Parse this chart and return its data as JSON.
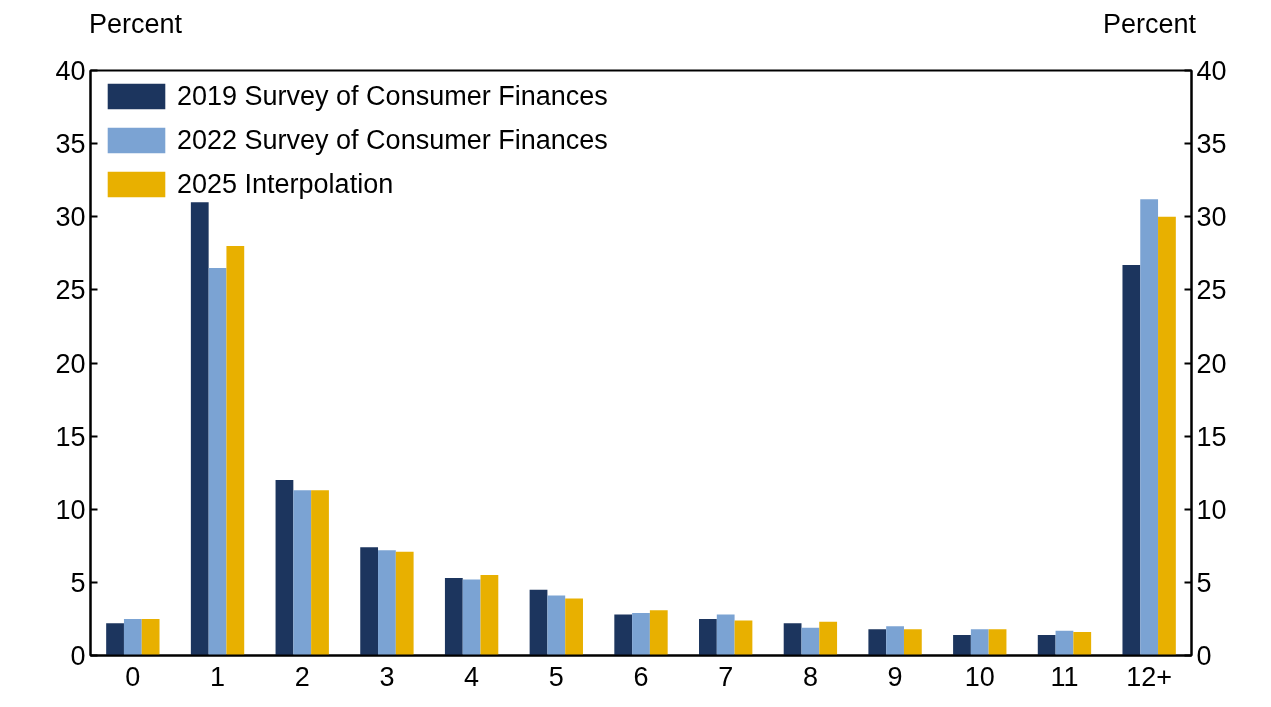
{
  "chart_data": {
    "type": "bar",
    "ylabel": "Percent",
    "y2label": "Percent",
    "categories": [
      "0",
      "1",
      "2",
      "3",
      "4",
      "5",
      "6",
      "7",
      "8",
      "9",
      "10",
      "11",
      "12+"
    ],
    "series": [
      {
        "name": "2019 Survey of Consumer Finances",
        "color": "#1c355e",
        "values": [
          2.2,
          31.0,
          12.0,
          7.4,
          5.3,
          4.5,
          2.8,
          2.5,
          2.2,
          1.8,
          1.4,
          1.4,
          26.7
        ]
      },
      {
        "name": "2022 Survey of Consumer Finances",
        "color": "#7ba3d3",
        "values": [
          2.5,
          26.5,
          11.3,
          7.2,
          5.2,
          4.1,
          2.9,
          2.8,
          1.9,
          2.0,
          1.8,
          1.7,
          31.2
        ]
      },
      {
        "name": "2025 Interpolation",
        "color": "#e8b000",
        "values": [
          2.5,
          28.0,
          11.3,
          7.1,
          5.5,
          3.9,
          3.1,
          2.4,
          2.3,
          1.8,
          1.8,
          1.6,
          30.0
        ]
      }
    ],
    "ylim": [
      0,
      40
    ],
    "yticks": [
      0,
      5,
      10,
      15,
      20,
      25,
      30,
      35,
      40
    ],
    "y2lim": [
      0,
      40
    ],
    "y2ticks": [
      0,
      5,
      10,
      15,
      20,
      25,
      30,
      35,
      40
    ],
    "grid": false,
    "legend": "top left"
  }
}
